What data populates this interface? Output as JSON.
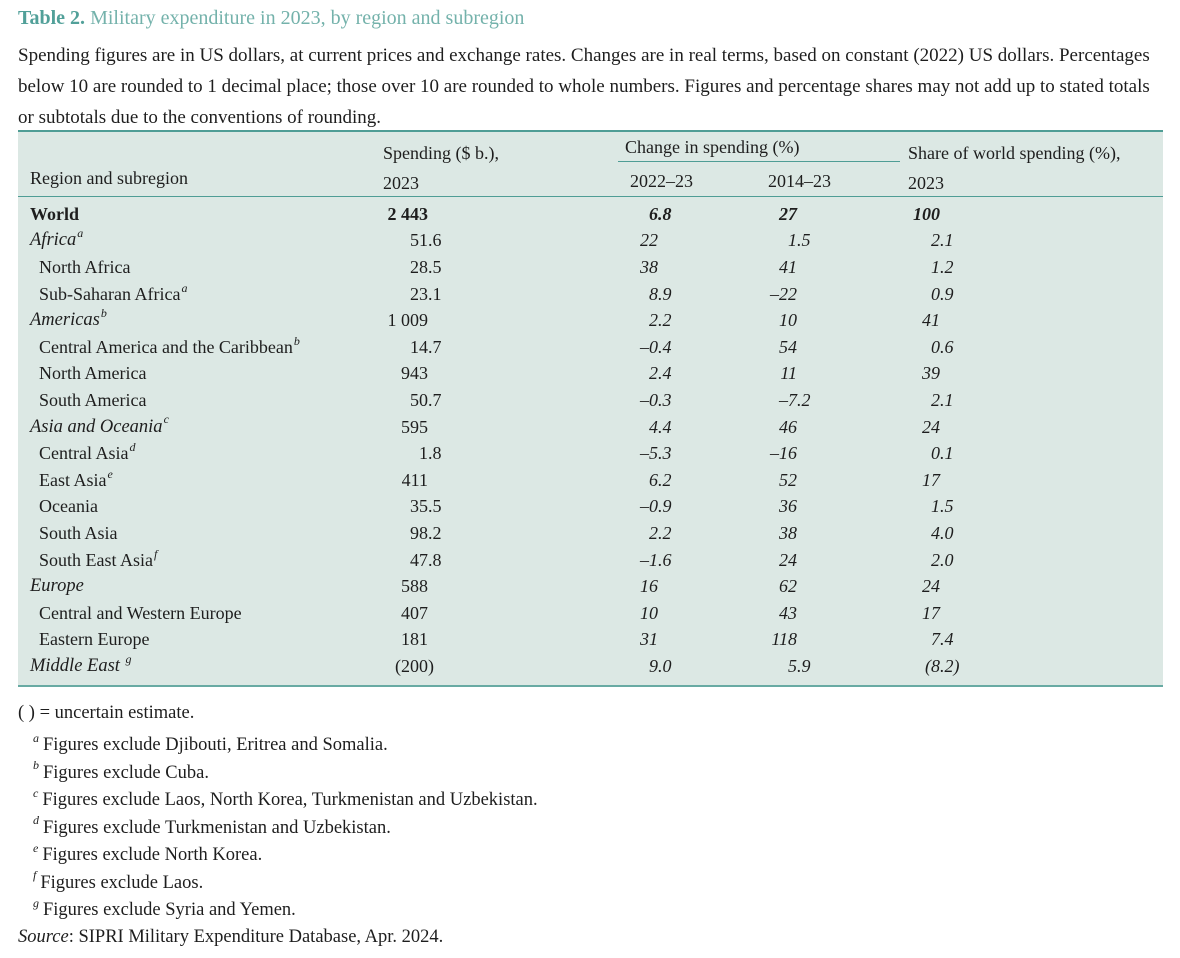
{
  "strings": {
    "table_label": "Table 2.",
    "table_title": "Military expenditure in 2023, by region and subregion",
    "intro": "Spending figures are in US dollars, at current prices and exchange rates. Changes are in real terms, based on constant (2022) US dollars. Percentages below 10 are rounded to 1 decimal place; those over 10 are rounded to whole numbers. Figures and percentage shares may not add up to stated totals or subtotals due to the conventions of rounding."
  },
  "colors": {
    "title_bold_teal": "#51a099",
    "title_teal": "#74b2ab",
    "table_background": "#dce8e4",
    "rule_teal": "#4f9d95",
    "text": "#1e1e1e"
  },
  "header": {
    "region_col": "Region and subregion",
    "spending_col_line1": "Spending ($ b.),",
    "spending_col_line2": "2023",
    "change_group": "Change in spending (%)",
    "change_col1": "2022–23",
    "change_col2": "2014–23",
    "share_col_line1": "Share of world spending (%),",
    "share_col_line2": "2023"
  },
  "table": {
    "rows": [
      {
        "label": "World",
        "style": "world",
        "spending": "2 443",
        "c1": "6.8",
        "c2": "27",
        "share": "100"
      },
      {
        "label": "Africa",
        "sup": "a",
        "style": "region",
        "spending": "51.6",
        "c1": "22",
        "c2": "1.5",
        "share": "2.1"
      },
      {
        "label": "North Africa",
        "style": "sub",
        "spending": "28.5",
        "c1": "38",
        "c2": "41",
        "share": "1.2"
      },
      {
        "label": "Sub-Saharan Africa",
        "sup": "a",
        "style": "sub",
        "spending": "23.1",
        "c1": "8.9",
        "c2": "–22",
        "share": "0.9"
      },
      {
        "label": "Americas",
        "sup": "b",
        "style": "region",
        "spending": "1 009",
        "c1": "2.2",
        "c2": "10",
        "share": "41"
      },
      {
        "label": "Central America and the Caribbean",
        "sup": "b",
        "style": "sub",
        "spending": "14.7",
        "c1": "–0.4",
        "c2": "54",
        "share": "0.6"
      },
      {
        "label": "North America",
        "style": "sub",
        "spending": "943",
        "c1": "2.4",
        "c2": "11",
        "share": "39"
      },
      {
        "label": "South America",
        "style": "sub",
        "spending": "50.7",
        "c1": "–0.3",
        "c2": "–7.2",
        "share": "2.1"
      },
      {
        "label": "Asia and Oceania",
        "sup": "c",
        "style": "region",
        "spending": "595",
        "c1": "4.4",
        "c2": "46",
        "share": "24"
      },
      {
        "label": "Central Asia",
        "sup": "d",
        "style": "sub",
        "spending": "1.8",
        "c1": "–5.3",
        "c2": "–16",
        "share": "0.1"
      },
      {
        "label": "East Asia",
        "sup": "e",
        "style": "sub",
        "spending": "411",
        "c1": "6.2",
        "c2": "52",
        "share": "17"
      },
      {
        "label": "Oceania",
        "style": "sub",
        "spending": "35.5",
        "c1": "–0.9",
        "c2": "36",
        "share": "1.5"
      },
      {
        "label": "South Asia",
        "style": "sub",
        "spending": "98.2",
        "c1": "2.2",
        "c2": "38",
        "share": "4.0"
      },
      {
        "label": "South East Asia",
        "sup": "f",
        "style": "sub",
        "spending": "47.8",
        "c1": "–1.6",
        "c2": "24",
        "share": "2.0"
      },
      {
        "label": "Europe",
        "style": "region",
        "spending": "588",
        "c1": "16",
        "c2": "62",
        "share": "24"
      },
      {
        "label": "Central and Western Europe",
        "style": "sub",
        "spending": "407",
        "c1": "10",
        "c2": "43",
        "share": "17"
      },
      {
        "label": "Eastern Europe",
        "style": "sub",
        "spending": "181",
        "c1": "31",
        "c2": "118",
        "share": "7.4"
      },
      {
        "label": "Middle East ",
        "sup": "g",
        "style": "region",
        "spending": "(200)",
        "c1": "9.0",
        "c2": "5.9",
        "share": "(8.2)"
      }
    ]
  },
  "notes": {
    "uncertain": "( ) = uncertain estimate.",
    "footnotes": [
      {
        "marker": "a",
        "text": "Figures exclude Djibouti, Eritrea and Somalia."
      },
      {
        "marker": "b",
        "text": "Figures exclude Cuba."
      },
      {
        "marker": "c",
        "text": "Figures exclude Laos, North Korea, Turkmenistan and Uzbekistan."
      },
      {
        "marker": "d",
        "text": "Figures exclude Turkmenistan and Uzbekistan."
      },
      {
        "marker": "e",
        "text": "Figures exclude North Korea."
      },
      {
        "marker": "f",
        "text": "Figures exclude Laos."
      },
      {
        "marker": "g",
        "text": "Figures exclude Syria and Yemen."
      }
    ],
    "source_label": "Source",
    "source_text": ": SIPRI Military Expenditure Database, Apr. 2024."
  }
}
